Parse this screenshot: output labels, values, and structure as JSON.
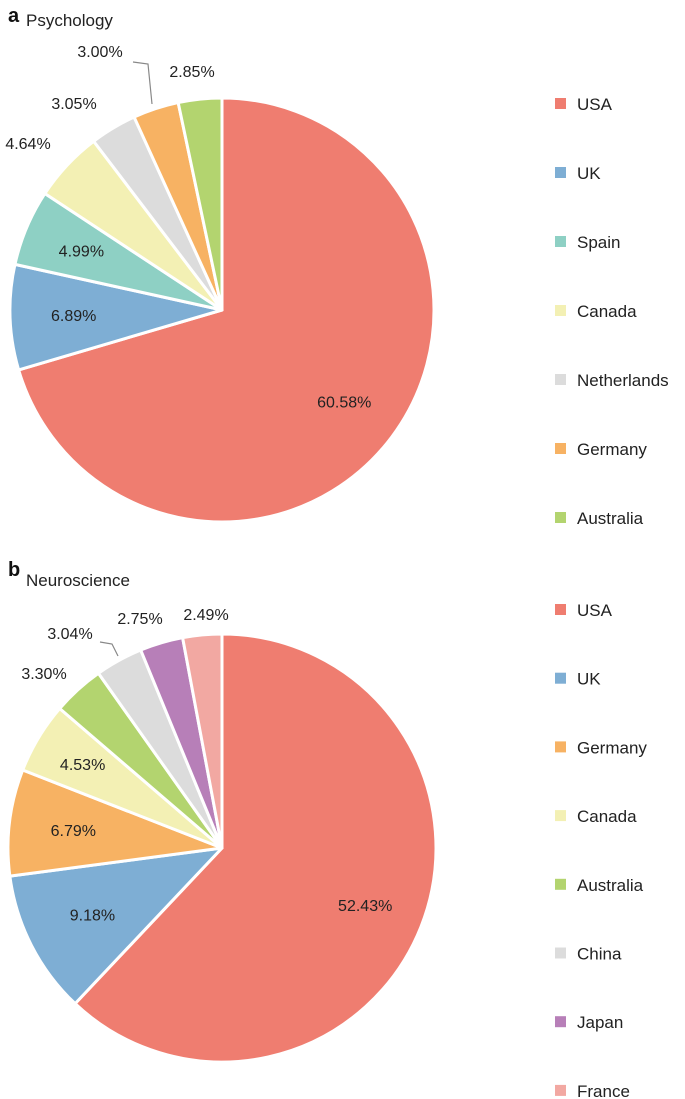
{
  "chart_data": [
    {
      "type": "pie",
      "panel": "a",
      "title": "Psychology",
      "start_angle_deg": 0,
      "direction": "clockwise",
      "legend_position": "right",
      "series": [
        {
          "name": "USA",
          "value": 60.58,
          "label": "60.58%",
          "color": "#ef7d70"
        },
        {
          "name": "UK",
          "value": 6.89,
          "label": "6.89%",
          "color": "#7eaed4"
        },
        {
          "name": "Spain",
          "value": 4.99,
          "label": "4.99%",
          "color": "#8ed0c4"
        },
        {
          "name": "Canada",
          "value": 4.64,
          "label": "4.64%",
          "color": "#f3f0b4"
        },
        {
          "name": "Netherlands",
          "value": 3.05,
          "label": "3.05%",
          "color": "#dcdcdc"
        },
        {
          "name": "Germany",
          "value": 3.0,
          "label": "3.00%",
          "color": "#f7b263"
        },
        {
          "name": "Australia",
          "value": 2.85,
          "label": "2.85%",
          "color": "#b3d46f"
        }
      ]
    },
    {
      "type": "pie",
      "panel": "b",
      "title": "Neuroscience",
      "start_angle_deg": 0,
      "direction": "clockwise",
      "legend_position": "right",
      "series": [
        {
          "name": "USA",
          "value": 52.43,
          "label": "52.43%",
          "color": "#ef7d70"
        },
        {
          "name": "UK",
          "value": 9.18,
          "label": "9.18%",
          "color": "#7eaed4"
        },
        {
          "name": "Germany",
          "value": 6.79,
          "label": "6.79%",
          "color": "#f7b263"
        },
        {
          "name": "Canada",
          "value": 4.53,
          "label": "4.53%",
          "color": "#f3f0b4"
        },
        {
          "name": "Australia",
          "value": 3.3,
          "label": "3.30%",
          "color": "#b3d46f"
        },
        {
          "name": "China",
          "value": 3.04,
          "label": "3.04%",
          "color": "#dcdcdc"
        },
        {
          "name": "Japan",
          "value": 2.75,
          "label": "2.75%",
          "color": "#b77fb8"
        },
        {
          "name": "France",
          "value": 2.49,
          "label": "2.49%",
          "color": "#f2a8a2"
        }
      ]
    }
  ]
}
